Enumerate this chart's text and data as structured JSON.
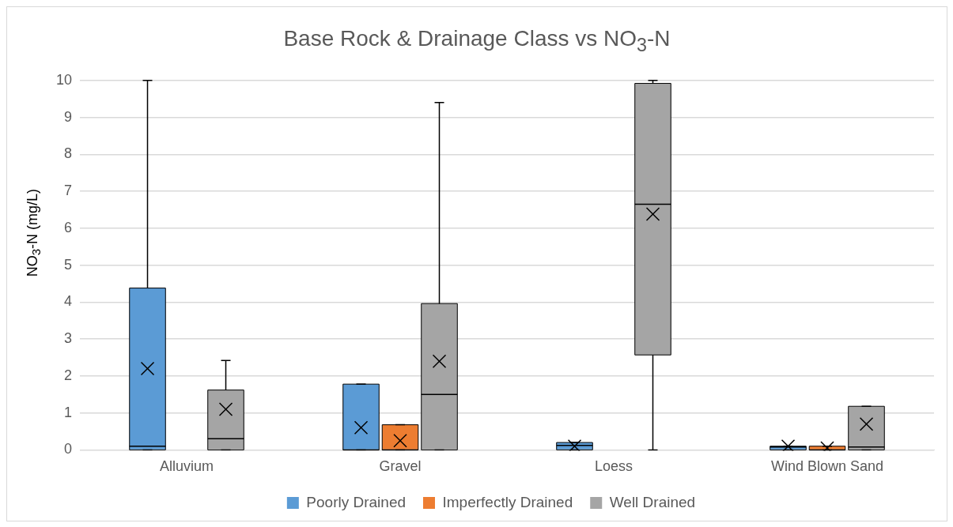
{
  "chart_data": {
    "type": "box",
    "title": "Base Rock & Drainage Class vs NO$_{3}$-N",
    "ylabel": "NO$_{3}$-N  (mg/L)",
    "categories": [
      "Alluvium",
      "Gravel",
      "Loess",
      "Wind Blown Sand"
    ],
    "series": [
      {
        "name": "Poorly Drained",
        "color": "#5b9bd5",
        "boxes": [
          {
            "low": 0,
            "q1": 0,
            "median": 0.1,
            "q3": 4.38,
            "high": 10,
            "mean": 2.2
          },
          {
            "low": 0,
            "q1": 0,
            "median": 0,
            "q3": 1.78,
            "high": 1.78,
            "mean": 0.6
          },
          {
            "low": 0,
            "q1": 0,
            "median": 0.12,
            "q3": 0.2,
            "high": 0.2,
            "mean": 0.1
          },
          {
            "low": 0,
            "q1": 0,
            "median": 0.08,
            "q3": 0.1,
            "high": 0.1,
            "mean": 0.1
          }
        ]
      },
      {
        "name": "Imperfectly Drained",
        "color": "#ed7d31",
        "boxes": [
          null,
          {
            "low": 0,
            "q1": 0,
            "median": 0,
            "q3": 0.68,
            "high": 0.68,
            "mean": 0.25
          },
          null,
          {
            "low": 0,
            "q1": 0,
            "median": 0,
            "q3": 0.1,
            "high": 0.1,
            "mean": 0.05
          }
        ]
      },
      {
        "name": "Well Drained",
        "color": "#a5a5a5",
        "boxes": [
          {
            "low": 0,
            "q1": 0,
            "median": 0.3,
            "q3": 1.62,
            "high": 2.42,
            "mean": 1.1
          },
          {
            "low": 0,
            "q1": 0,
            "median": 1.5,
            "q3": 3.96,
            "high": 9.4,
            "mean": 2.4
          },
          {
            "low": 0,
            "q1": 2.57,
            "median": 6.65,
            "q3": 9.92,
            "high": 10,
            "mean": 6.38
          },
          {
            "low": 0,
            "q1": 0,
            "median": 0.08,
            "q3": 1.18,
            "high": 1.18,
            "mean": 0.7
          }
        ]
      }
    ],
    "ylim": [
      0,
      10
    ],
    "yticks": [
      0,
      1,
      2,
      3,
      4,
      5,
      6,
      7,
      8,
      9,
      10
    ],
    "grid": "y",
    "legend": "bottom"
  }
}
